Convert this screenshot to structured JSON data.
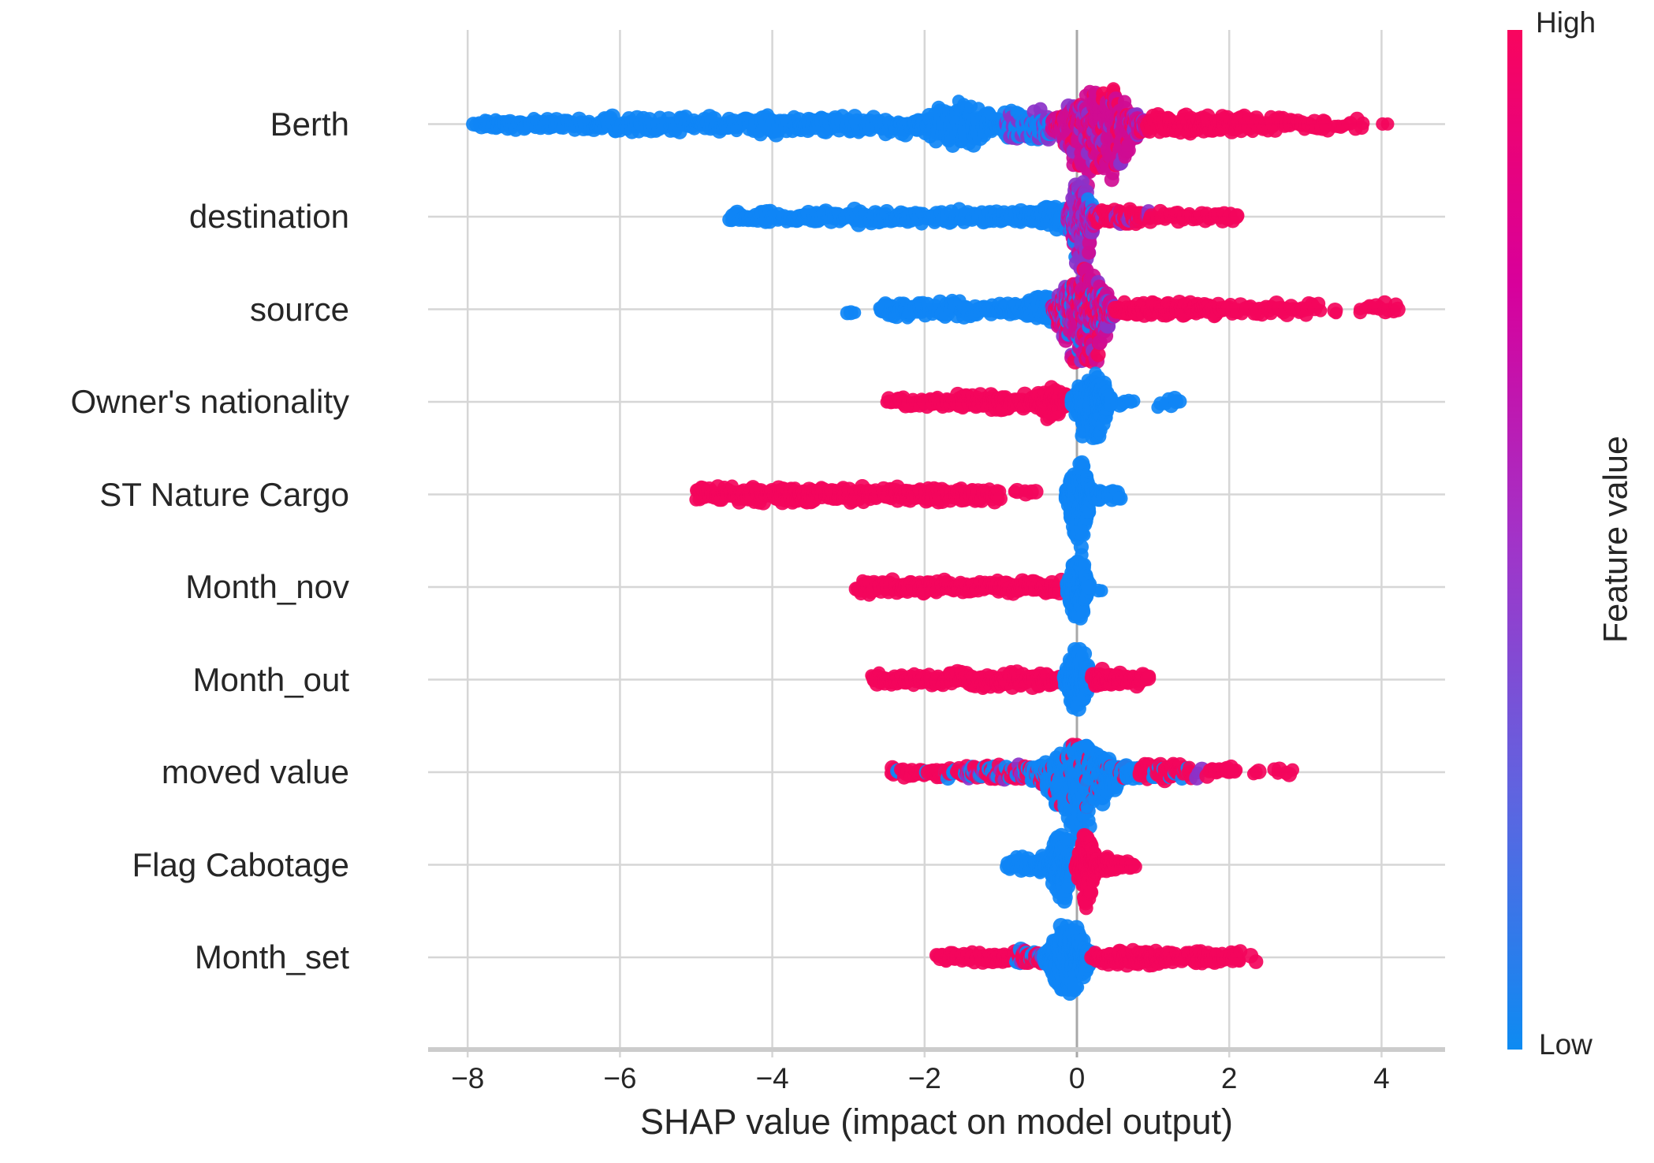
{
  "chart_data": {
    "type": "beeswarm",
    "xlabel": "SHAP value (impact on model output)",
    "x_ticks": [
      -8,
      -6,
      -4,
      -2,
      0,
      2,
      4
    ],
    "x_tick_labels": [
      "−8",
      "−6",
      "−4",
      "−2",
      "0",
      "2",
      "4"
    ],
    "xlim": [
      -8.52,
      4.83
    ],
    "grid": true,
    "colorbar": {
      "label": "Feature value",
      "high": "High",
      "low": "Low",
      "gradient": [
        "#f8055e",
        "#d8009b",
        "#a233c8",
        "#5f64e0",
        "#0d8bf2"
      ]
    },
    "dot_colors": {
      "blue": "#0f86f5",
      "pink": "#f3055c",
      "magenta": "#cf0c93",
      "purple": "#8b32c9"
    },
    "segment_schema": "[x0, x1, shape(line|wedgeR|wedgeL|blob|diamond), half_height_up_px, half_height_down_px, n_dots, color | {color:weight}]",
    "features": [
      {
        "name": "Berth",
        "range": [
          -7.93,
          4.1
        ],
        "segments": [
          [
            -7.93,
            -7.8,
            "line",
            7,
            7,
            4,
            "blue"
          ],
          [
            -7.78,
            -6.2,
            "line",
            9,
            9,
            95,
            "blue"
          ],
          [
            -6.2,
            -4.4,
            "line",
            12,
            12,
            115,
            "blue"
          ],
          [
            -4.4,
            -2.15,
            "line",
            14,
            14,
            155,
            "blue"
          ],
          [
            -2.15,
            -0.95,
            "blob",
            36,
            34,
            190,
            "blue"
          ],
          [
            -0.95,
            -0.32,
            "line",
            24,
            22,
            95,
            {
              "blue": 0.6,
              "purple": 0.4
            }
          ],
          [
            -0.32,
            0.92,
            "blob",
            54,
            88,
            430,
            {
              "magenta": 0.7,
              "pink": 0.18,
              "purple": 0.12
            }
          ],
          [
            0.92,
            2.2,
            "line",
            13,
            13,
            135,
            "pink"
          ],
          [
            2.2,
            3.3,
            "line",
            10,
            10,
            62,
            "pink"
          ],
          [
            3.35,
            3.8,
            "line",
            7,
            7,
            10,
            "pink"
          ],
          [
            4.0,
            4.1,
            "line",
            7,
            7,
            2,
            "pink"
          ]
        ]
      },
      {
        "name": "destination",
        "range": [
          -4.56,
          2.12
        ],
        "segments": [
          [
            -4.56,
            -3.5,
            "line",
            8,
            8,
            60,
            "blue"
          ],
          [
            -3.5,
            -0.75,
            "line",
            10,
            10,
            165,
            "blue"
          ],
          [
            -0.75,
            -0.12,
            "wedgeR",
            26,
            24,
            95,
            "blue"
          ],
          [
            -0.12,
            0.24,
            "blob",
            52,
            76,
            270,
            {
              "purple": 0.58,
              "magenta": 0.32,
              "blue": 0.1
            }
          ],
          [
            0.24,
            0.98,
            "line",
            11,
            11,
            95,
            {
              "pink": 0.8,
              "purple": 0.2
            }
          ],
          [
            1.05,
            2.12,
            "line",
            8,
            8,
            42,
            "pink"
          ]
        ]
      },
      {
        "name": "source",
        "range": [
          -3.02,
          4.25
        ],
        "segments": [
          [
            -3.02,
            -2.9,
            "line",
            7,
            7,
            3,
            "blue"
          ],
          [
            -2.6,
            -0.9,
            "line",
            11,
            11,
            115,
            "blue"
          ],
          [
            -0.9,
            -0.32,
            "wedgeR",
            30,
            26,
            85,
            "blue"
          ],
          [
            -0.32,
            0.5,
            "blob",
            54,
            90,
            430,
            {
              "magenta": 0.45,
              "pink": 0.25,
              "purple": 0.2,
              "blue": 0.1
            }
          ],
          [
            0.5,
            2.0,
            "line",
            10,
            10,
            145,
            "pink"
          ],
          [
            2.0,
            3.2,
            "line",
            9,
            9,
            46,
            "pink"
          ],
          [
            3.35,
            3.45,
            "line",
            7,
            7,
            2,
            "pink"
          ],
          [
            3.68,
            4.25,
            "line",
            8,
            8,
            14,
            "pink"
          ]
        ]
      },
      {
        "name": "Owner's nationality",
        "range": [
          -2.5,
          1.38
        ],
        "segments": [
          [
            -2.5,
            -1.6,
            "line",
            8,
            8,
            52,
            "pink"
          ],
          [
            -1.6,
            -0.62,
            "line",
            11,
            11,
            95,
            "pink"
          ],
          [
            -0.62,
            -0.08,
            "blob",
            26,
            24,
            115,
            "pink"
          ],
          [
            -0.06,
            0.45,
            "blob",
            46,
            60,
            270,
            "blue"
          ],
          [
            0.55,
            0.75,
            "line",
            8,
            8,
            6,
            "blue"
          ],
          [
            1.05,
            1.38,
            "line",
            8,
            8,
            8,
            "blue"
          ]
        ]
      },
      {
        "name": "ST Nature Cargo",
        "range": [
          -5.0,
          0.58
        ],
        "segments": [
          [
            -5.0,
            -2.6,
            "line",
            11,
            11,
            230,
            "pink"
          ],
          [
            -2.55,
            -1.0,
            "line",
            10,
            10,
            135,
            "pink"
          ],
          [
            -0.85,
            -0.5,
            "line",
            7,
            7,
            6,
            "pink"
          ],
          [
            -0.14,
            0.2,
            "blob",
            50,
            74,
            250,
            "blue"
          ],
          [
            0.2,
            0.58,
            "wedgeL",
            14,
            12,
            26,
            "blue"
          ]
        ]
      },
      {
        "name": "Month_nov",
        "range": [
          -2.9,
          0.33
        ],
        "segments": [
          [
            -2.9,
            -2.15,
            "line",
            11,
            11,
            62,
            "pink"
          ],
          [
            -2.15,
            -0.2,
            "line",
            9,
            9,
            175,
            "pink"
          ],
          [
            -0.13,
            0.16,
            "blob",
            55,
            54,
            230,
            "blue"
          ],
          [
            0.27,
            0.33,
            "line",
            7,
            7,
            2,
            "blue"
          ]
        ]
      },
      {
        "name": "Month_out",
        "range": [
          -2.7,
          0.95
        ],
        "segments": [
          [
            -2.7,
            -1.6,
            "line",
            9,
            9,
            92,
            "pink"
          ],
          [
            -1.6,
            -0.5,
            "line",
            12,
            12,
            112,
            "pink"
          ],
          [
            -0.5,
            -0.18,
            "line",
            9,
            9,
            40,
            "pink"
          ],
          [
            -0.16,
            0.2,
            "blob",
            48,
            44,
            240,
            "blue"
          ],
          [
            0.2,
            0.55,
            "blob",
            16,
            14,
            50,
            "pink"
          ],
          [
            0.55,
            0.95,
            "line",
            9,
            9,
            30,
            "pink"
          ]
        ]
      },
      {
        "name": "moved value",
        "range": [
          -2.45,
          2.85
        ],
        "segments": [
          [
            -2.45,
            -1.5,
            "line",
            8,
            8,
            56,
            {
              "pink": 0.85,
              "blue": 0.15
            }
          ],
          [
            -1.5,
            -0.6,
            "line",
            11,
            11,
            92,
            {
              "pink": 0.6,
              "blue": 0.25,
              "purple": 0.15
            }
          ],
          [
            -0.6,
            0.66,
            "diamond",
            44,
            95,
            540,
            {
              "blue": 0.93,
              "pink": 0.07
            }
          ],
          [
            0.66,
            0.82,
            "line",
            9,
            9,
            12,
            "blue"
          ],
          [
            0.82,
            1.5,
            "line",
            11,
            11,
            92,
            {
              "pink": 0.85,
              "blue": 0.15
            }
          ],
          [
            1.55,
            1.65,
            "line",
            8,
            8,
            3,
            "purple"
          ],
          [
            1.7,
            2.1,
            "line",
            8,
            8,
            20,
            "pink"
          ],
          [
            2.3,
            2.4,
            "line",
            7,
            7,
            3,
            "pink"
          ],
          [
            2.55,
            2.85,
            "line",
            7,
            7,
            6,
            "pink"
          ]
        ]
      },
      {
        "name": "Flag Cabotage",
        "range": [
          -0.92,
          0.78
        ],
        "segments": [
          [
            -0.92,
            -0.58,
            "blob",
            14,
            13,
            32,
            "blue"
          ],
          [
            -0.56,
            -0.4,
            "blob",
            17,
            16,
            42,
            "blue"
          ],
          [
            -0.37,
            -0.03,
            "blob",
            52,
            51,
            290,
            "blue"
          ],
          [
            -0.01,
            0.26,
            "blob",
            40,
            58,
            250,
            "pink"
          ],
          [
            0.26,
            0.5,
            "blob",
            15,
            13,
            40,
            "pink"
          ],
          [
            0.5,
            0.78,
            "line",
            8,
            8,
            14,
            "pink"
          ]
        ]
      },
      {
        "name": "Month_set",
        "range": [
          -1.85,
          2.36
        ],
        "segments": [
          [
            -1.85,
            -0.82,
            "line",
            8,
            8,
            56,
            "pink"
          ],
          [
            -0.82,
            -0.42,
            "line",
            11,
            11,
            52,
            {
              "pink": 0.6,
              "blue": 0.3,
              "purple": 0.1
            }
          ],
          [
            -0.42,
            0.2,
            "blob",
            50,
            53,
            440,
            "blue"
          ],
          [
            0.2,
            1.2,
            "line",
            11,
            11,
            155,
            "pink"
          ],
          [
            1.2,
            2.15,
            "line",
            9,
            9,
            72,
            "pink"
          ],
          [
            2.28,
            2.36,
            "line",
            7,
            7,
            2,
            "pink"
          ]
        ]
      }
    ]
  }
}
